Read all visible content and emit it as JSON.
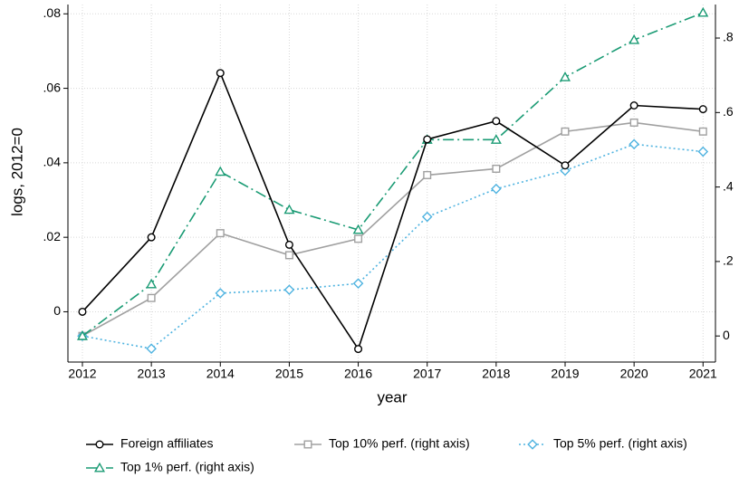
{
  "chart_data": {
    "type": "line",
    "y_label": "logs, 2012=0",
    "x_label": "year",
    "x": [
      2012,
      2013,
      2014,
      2015,
      2016,
      2017,
      2018,
      2019,
      2020,
      2021
    ],
    "xlim": [
      2011.79,
      2021.18
    ],
    "xticks": [
      2012,
      2013,
      2014,
      2015,
      2016,
      2017,
      2018,
      2019,
      2020,
      2021
    ],
    "ylim": [
      -0.0135,
      0.0825
    ],
    "yticks": [
      0,
      {
        "value": 0.02,
        "label": ".02"
      },
      {
        "value": 0.04,
        "label": ".04"
      },
      {
        "value": 0.06,
        "label": ".06"
      },
      {
        "value": 0.08,
        "label": ".08"
      }
    ],
    "y2lim": [
      -0.07,
      0.89
    ],
    "y2ticks": [
      0,
      {
        "value": 0.2,
        "label": ".2"
      },
      {
        "value": 0.4,
        "label": ".4"
      },
      {
        "value": 0.6,
        "label": ".6"
      },
      {
        "value": 0.8,
        "label": ".8"
      }
    ],
    "grid": true,
    "legend": "bottom",
    "series": [
      {
        "name": "Foreign affiliates",
        "color": "#000000",
        "marker": "circle",
        "line": "solid",
        "values": [
          0,
          0.02,
          0.0641,
          0.018,
          -0.01,
          0.0463,
          0.0512,
          0.0393,
          0.0554,
          0.0544
        ]
      },
      {
        "name": "Top 10% perf. (right axis)",
        "color": "#a0a0a0",
        "marker": "square",
        "line": "solid",
        "axis": "y2",
        "values": [
          0,
          0.102,
          0.276,
          0.217,
          0.261,
          0.432,
          0.449,
          0.549,
          0.573,
          0.549
        ]
      },
      {
        "name": "Top 5% perf. (right axis)",
        "color": "#4fb3e0",
        "marker": "diamond",
        "line": "dot",
        "axis": "y2",
        "values": [
          0,
          -0.034,
          0.115,
          0.124,
          0.141,
          0.32,
          0.395,
          0.444,
          0.515,
          0.495
        ]
      },
      {
        "name": "Top 1% perf. (right axis)",
        "color": "#1a9b74",
        "marker": "triangle",
        "line": "dash-dot",
        "axis": "y2",
        "values": [
          0,
          0.139,
          0.441,
          0.339,
          0.285,
          0.527,
          0.527,
          0.695,
          0.795,
          0.868
        ]
      }
    ]
  }
}
